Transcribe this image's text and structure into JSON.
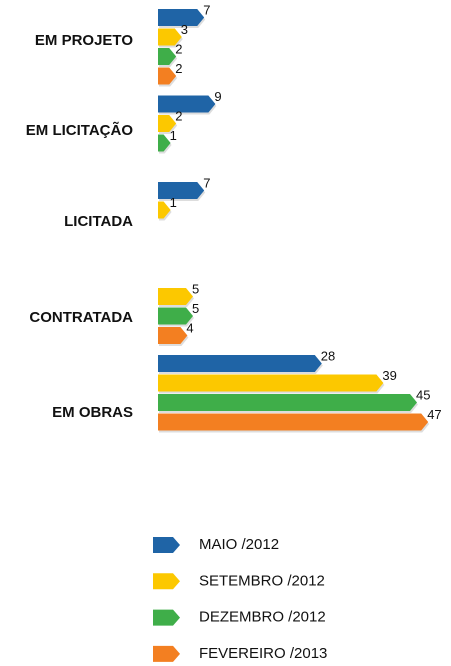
{
  "chart_data": {
    "type": "bar",
    "orientation": "horizontal",
    "categories": [
      "EM PROJETO",
      "EM LICITAÇÃO",
      "LICITADA",
      "CONTRATADA",
      "EM OBRAS"
    ],
    "series": [
      {
        "name": "MAIO /2012",
        "color": "#1f64a6",
        "values": [
          7,
          9,
          7,
          null,
          28
        ]
      },
      {
        "name": "SETEMBRO /2012",
        "color": "#fcc800",
        "values": [
          3,
          2,
          1,
          5,
          39
        ]
      },
      {
        "name": "DEZEMBRO /2012",
        "color": "#3fae49",
        "values": [
          2,
          1,
          null,
          5,
          45
        ]
      },
      {
        "name": "FEVEREIRO /2013",
        "color": "#f37f21",
        "values": [
          2,
          null,
          null,
          4,
          47
        ]
      }
    ]
  }
}
